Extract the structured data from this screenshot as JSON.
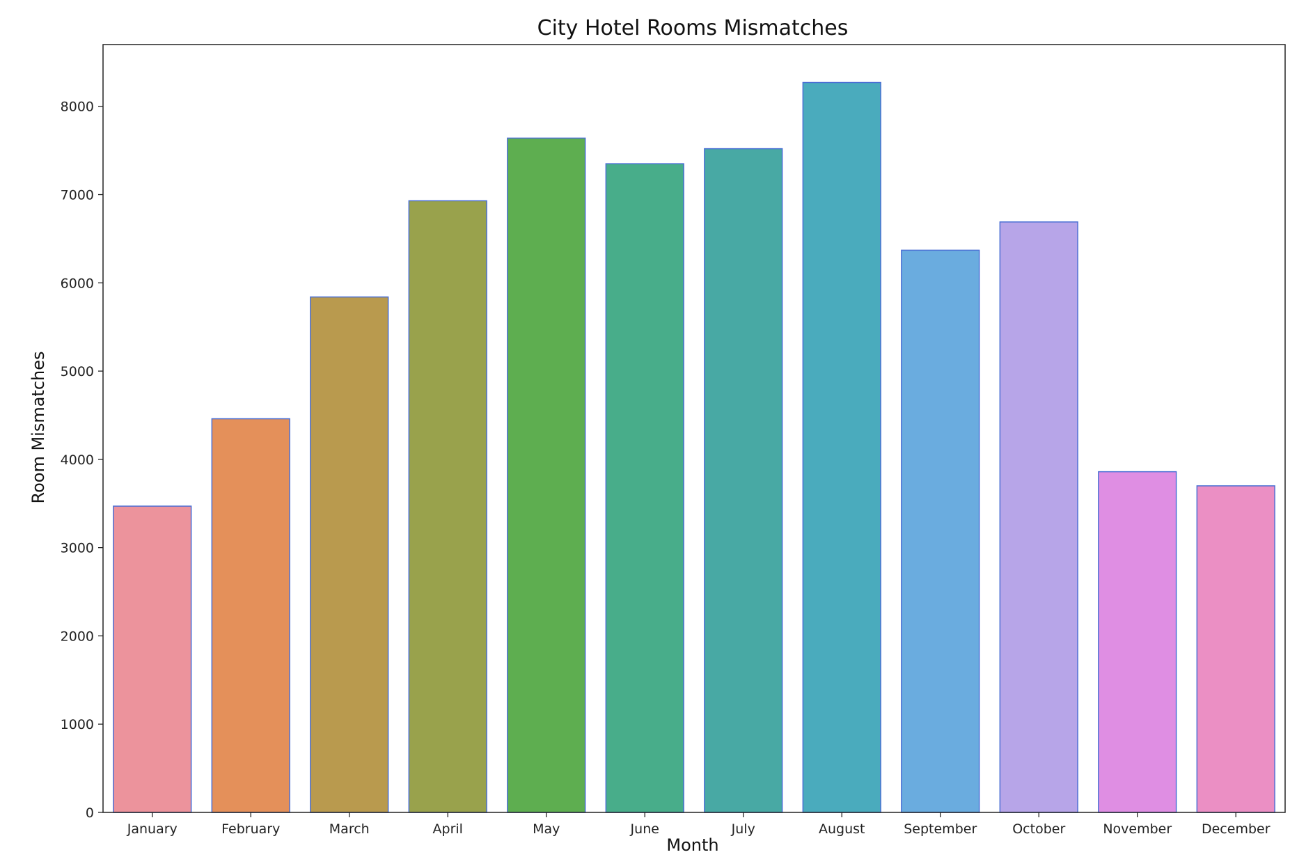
{
  "chart_data": {
    "type": "bar",
    "title": "City Hotel Rooms Mismatches",
    "xlabel": "Month",
    "ylabel": "Room Mismatches",
    "categories": [
      "January",
      "February",
      "March",
      "April",
      "May",
      "June",
      "July",
      "August",
      "September",
      "October",
      "November",
      "December"
    ],
    "values": [
      3470,
      4460,
      5840,
      6930,
      7640,
      7350,
      7520,
      8270,
      6370,
      6690,
      3860,
      3700
    ],
    "colors": [
      "#ec939c",
      "#e4905a",
      "#b99a4e",
      "#99a24c",
      "#5eae50",
      "#48ad8a",
      "#48a9a4",
      "#4aabbd",
      "#6aacdf",
      "#b7a5e8",
      "#df8ee3",
      "#eb8fc4"
    ],
    "bar_edge_color": "#4a6fd4",
    "ylim": [
      0,
      8700
    ],
    "yticks": [
      0,
      1000,
      2000,
      3000,
      4000,
      5000,
      6000,
      7000,
      8000
    ],
    "grid": false,
    "legend": "none"
  }
}
